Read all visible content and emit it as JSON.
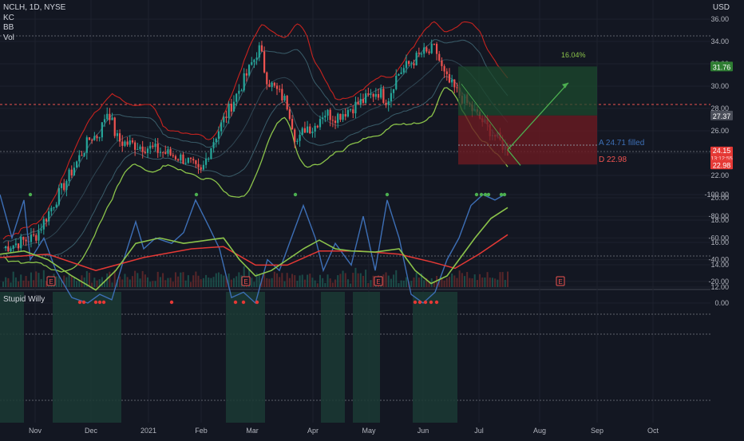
{
  "header": {
    "symbol_line": "NCLH, 1D, NYSE",
    "indicators": [
      "KC",
      "BB",
      "Vol"
    ],
    "currency": "USD"
  },
  "lower_pane": {
    "title": "Stupid Willy"
  },
  "price_axis": {
    "ticks": [
      "36.00",
      "34.00",
      "32.00",
      "30.00",
      "28.00",
      "26.00",
      "24.00",
      "22.00",
      "20.00",
      "18.00",
      "16.00",
      "14.00",
      "12.00"
    ]
  },
  "osc_axis": {
    "ticks": [
      "0.00",
      "-20.00",
      "-40.00",
      "-60.00",
      "-80.00",
      "-100.00"
    ]
  },
  "time_axis": {
    "labels": [
      "Nov",
      "Dec",
      "2021",
      "Feb",
      "Mar",
      "Apr",
      "May",
      "Jun",
      "Jul",
      "Aug",
      "Sep",
      "Oct"
    ]
  },
  "earnings_marker": "E",
  "price_badges": {
    "green": "31.76",
    "grey": "27.37",
    "red_top": "24.15",
    "red_sub": "13:12:55",
    "red_bottom": "22.98"
  },
  "annotations": {
    "target_pct": "16.04%",
    "entry_label": "A 24.71 filled",
    "stop_label": "D 22.98"
  },
  "colors": {
    "background": "#131722",
    "up": "#26a69a",
    "down": "#ef5350",
    "bb_line": "#c8231f",
    "kc_line": "#8bc34a",
    "osc_fast": "#3d6fb6",
    "osc_slow": "#8bc34a",
    "osc_red": "#e53935",
    "profit_zone": "#1c4a2e",
    "loss_zone": "#6b1a22"
  },
  "chart_data": {
    "type": "line",
    "symbol": "NCLH",
    "timeframe": "1D",
    "x": [
      "Nov",
      "Dec",
      "2021",
      "Feb",
      "Mar",
      "Apr",
      "May",
      "Jun",
      "Jul"
    ],
    "series": [
      {
        "values": [
          16.5,
          25.5,
          24.5,
          23.0,
          32.0,
          26.0,
          29.0,
          33.0,
          24.2
        ]
      }
    ],
    "ylim": [
      12,
      36
    ],
    "trade_levels": {
      "target": 31.76,
      "entry": 24.71,
      "stop": 22.98,
      "current": 24.15
    },
    "oscillator": {
      "ylim": [
        -100,
        0
      ]
    }
  }
}
